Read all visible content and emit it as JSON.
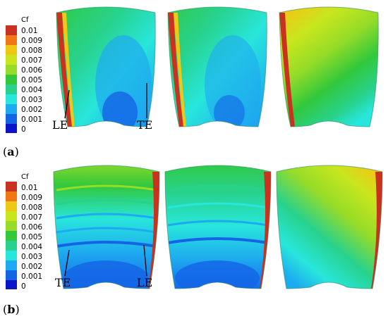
{
  "figure": {
    "legend_title": "Cf",
    "legend_levels": [
      "0.01",
      "0.009",
      "0.008",
      "0.007",
      "0.006",
      "0.005",
      "0.004",
      "0.003",
      "0.002",
      "0.001",
      "0"
    ],
    "legend_colors": [
      "#c8321e",
      "#f07814",
      "#f0c814",
      "#c8e61e",
      "#96dc28",
      "#32c83c",
      "#28d28c",
      "#28e6dc",
      "#1eaaf0",
      "#1464e6",
      "#0a14c8"
    ],
    "panels": [
      {
        "label_open": "(",
        "label_letter": "a",
        "label_close": ")",
        "edge_left": "LE",
        "edge_right": "TE"
      },
      {
        "label_open": "(",
        "label_letter": "b",
        "label_close": ")",
        "edge_left": "TE",
        "edge_right": "LE"
      }
    ]
  }
}
